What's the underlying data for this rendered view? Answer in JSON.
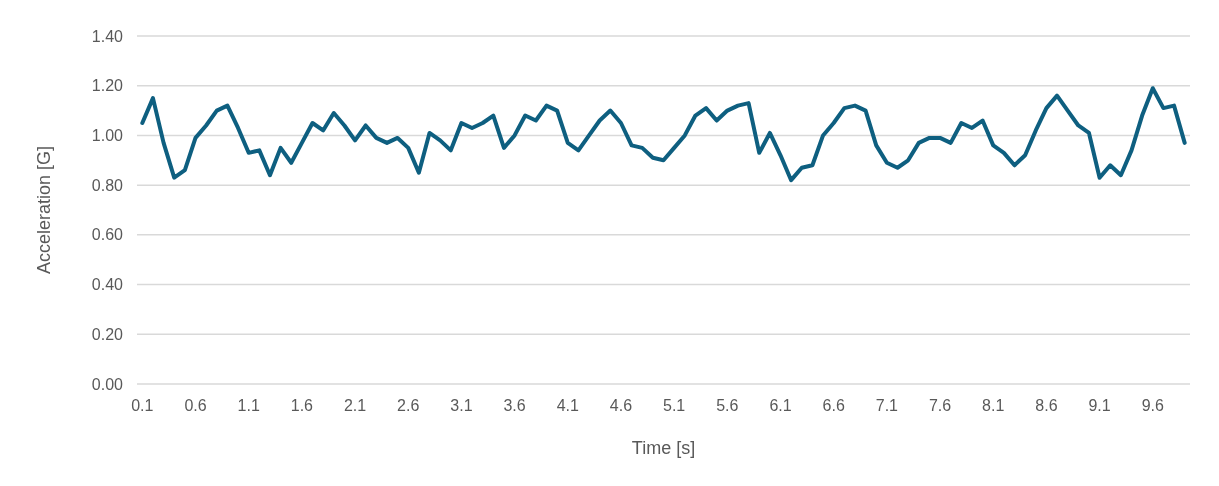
{
  "chart_data": {
    "type": "line",
    "xlabel": "Time [s]",
    "ylabel": "Acceleration [G]",
    "categories": [
      "0.1",
      null,
      null,
      null,
      null,
      "0.6",
      null,
      null,
      null,
      null,
      "1.1",
      null,
      null,
      null,
      null,
      "1.6",
      null,
      null,
      null,
      null,
      "2.1",
      null,
      null,
      null,
      null,
      "2.6",
      null,
      null,
      null,
      null,
      "3.1",
      null,
      null,
      null,
      null,
      "3.6",
      null,
      null,
      null,
      null,
      "4.1",
      null,
      null,
      null,
      null,
      "4.6",
      null,
      null,
      null,
      null,
      "5.1",
      null,
      null,
      null,
      null,
      "5.6",
      null,
      null,
      null,
      null,
      "6.1",
      null,
      null,
      null,
      null,
      "6.6",
      null,
      null,
      null,
      null,
      "7.1",
      null,
      null,
      null,
      null,
      "7.6",
      null,
      null,
      null,
      null,
      "8.1",
      null,
      null,
      null,
      null,
      "8.6",
      null,
      null,
      null,
      null,
      "9.1",
      null,
      null,
      null,
      null,
      "9.6",
      null,
      null,
      null
    ],
    "series": [
      {
        "color": "#0e5f80",
        "values": [
          1.05,
          1.15,
          0.97,
          0.83,
          0.86,
          0.99,
          1.04,
          1.1,
          1.12,
          1.03,
          0.93,
          0.94,
          0.84,
          0.95,
          0.89,
          0.97,
          1.05,
          1.02,
          1.09,
          1.04,
          0.98,
          1.04,
          0.99,
          0.97,
          0.99,
          0.95,
          0.85,
          1.01,
          0.98,
          0.94,
          1.05,
          1.03,
          1.05,
          1.08,
          0.95,
          1.0,
          1.08,
          1.06,
          1.12,
          1.1,
          0.97,
          0.94,
          1.0,
          1.06,
          1.1,
          1.05,
          0.96,
          0.95,
          0.91,
          0.9,
          0.95,
          1.0,
          1.08,
          1.11,
          1.06,
          1.1,
          1.12,
          1.13,
          0.93,
          1.01,
          0.92,
          0.82,
          0.87,
          0.88,
          1.0,
          1.05,
          1.11,
          1.12,
          1.1,
          0.96,
          0.89,
          0.87,
          0.9,
          0.97,
          0.99,
          0.99,
          0.97,
          1.05,
          1.03,
          1.06,
          0.96,
          0.93,
          0.88,
          0.92,
          1.02,
          1.11,
          1.16,
          1.1,
          1.04,
          1.01,
          0.83,
          0.88,
          0.84,
          0.94,
          1.08,
          1.19,
          1.11,
          1.12,
          0.97
        ]
      }
    ],
    "ylim": [
      0,
      1.4
    ],
    "yticks": [
      {
        "value": 0,
        "label": "0.00"
      },
      {
        "value": 0.2,
        "label": "0.20"
      },
      {
        "value": 0.4,
        "label": "0.40"
      },
      {
        "value": 0.6,
        "label": "0.60"
      },
      {
        "value": 0.8,
        "label": "0.80"
      },
      {
        "value": 1.0,
        "label": "1.00"
      },
      {
        "value": 1.2,
        "label": "1.20"
      },
      {
        "value": 1.4,
        "label": "1.40"
      }
    ],
    "grid": "y",
    "line_style": "solid"
  }
}
